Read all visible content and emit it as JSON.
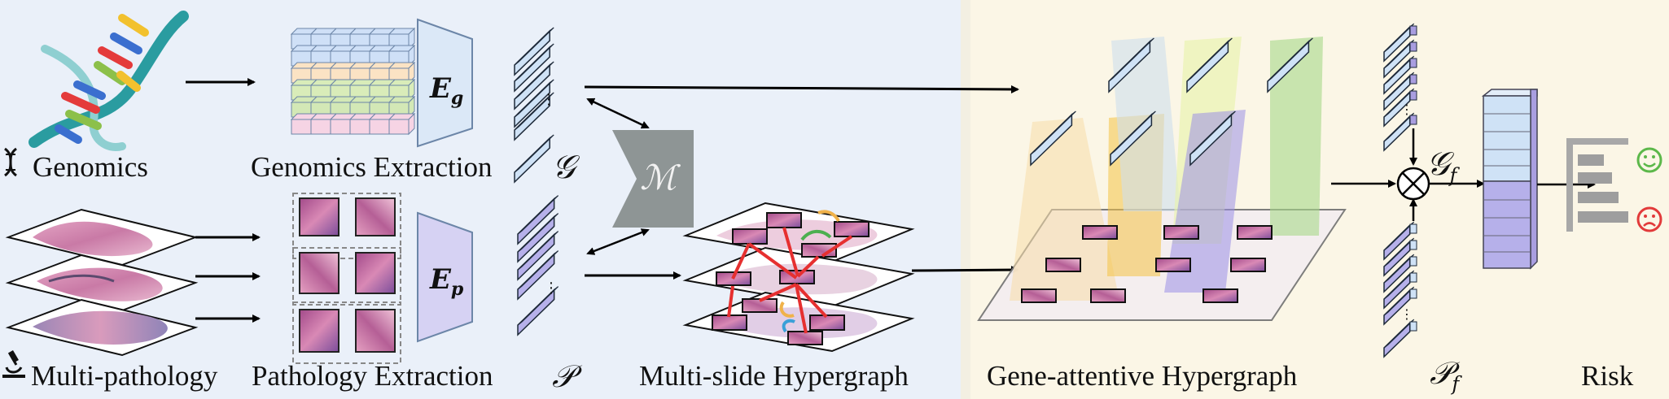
{
  "colors": {
    "left_bg": "#eaf0f9",
    "right_bg": "#fbf6e6",
    "genomic_block": "#cfe2f6",
    "pathology_block": "#b6b0ea",
    "encoder_g": "#dbe8f7",
    "encoder_p": "#d6d2f3",
    "fusion_gray": "#8e9595",
    "red_edge": "#e63030",
    "smile": "#5cb84a",
    "frown": "#e23a3a"
  },
  "labels": {
    "genomics": "Genomics",
    "multi_pathology": "Multi-pathology",
    "genomics_extraction": "Genomics Extraction",
    "pathology_extraction": "Pathology Extraction",
    "multi_slide_hypergraph": "Multi-slide Hypergraph",
    "gene_attentive_hypergraph": "Gene-attentive Hypergraph",
    "risk": "Risk"
  },
  "symbols": {
    "G": "𝒢",
    "P": "𝒫",
    "M": "ℳ",
    "Gf_base": "𝒢",
    "Gf_sub": "f",
    "Pf_base": "𝒫",
    "Pf_sub": "f",
    "Eg_base": "E",
    "Eg_sub": "g",
    "Ep_base": "E",
    "Ep_sub": "p",
    "dots": "⋮",
    "otimes": "⊗"
  },
  "icons": [
    "dna-icon",
    "microscope-icon",
    "smile-face-icon",
    "frown-face-icon"
  ]
}
